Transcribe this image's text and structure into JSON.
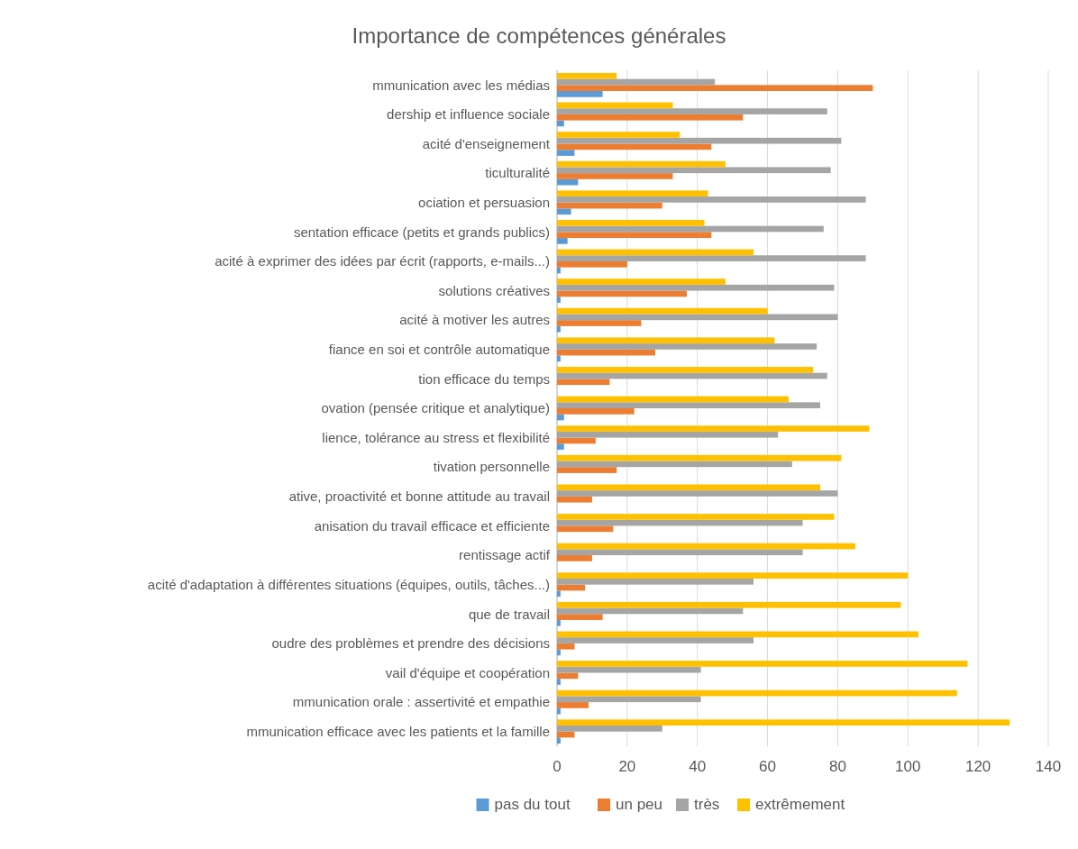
{
  "chart_data": {
    "type": "bar",
    "orientation": "horizontal",
    "title": "Importance de compétences générales",
    "categories": [
      "mmunication avec les médias",
      "dership et influence sociale",
      "acité d'enseignement",
      "ticulturalité",
      "ociation et persuasion",
      "sentation efficace (petits et grands publics)",
      "acité à exprimer des idées par écrit (rapports, e-mails...)",
      "solutions créatives",
      "acité à motiver les autres",
      "fiance en soi et contrôle automatique",
      "tion efficace du temps",
      "ovation (pensée critique et analytique)",
      "lience, tolérance au stress et flexibilité",
      "tivation personnelle",
      "ative, proactivité et bonne attitude au travail",
      "anisation du travail efficace et efficiente",
      "rentissage actif",
      "acité d'adaptation à différentes situations (équipes, outils, tâches...)",
      "que de travail",
      "oudre des problèmes et prendre des décisions",
      "vail d'équipe et coopération",
      "mmunication orale : assertivité et empathie",
      "mmunication efficace avec les patients et la famille"
    ],
    "series": [
      {
        "name": "pas du tout",
        "color": "#5b9bd5",
        "values": [
          13,
          2,
          5,
          6,
          4,
          3,
          1,
          1,
          1,
          1,
          0,
          2,
          2,
          0,
          0,
          0,
          0,
          1,
          1,
          1,
          1,
          1,
          1
        ]
      },
      {
        "name": "un peu",
        "color": "#ed7d31",
        "values": [
          90,
          53,
          44,
          33,
          30,
          44,
          20,
          37,
          24,
          28,
          15,
          22,
          11,
          17,
          10,
          16,
          10,
          8,
          13,
          5,
          6,
          9,
          5
        ]
      },
      {
        "name": "très",
        "color": "#a5a5a5",
        "values": [
          45,
          77,
          81,
          78,
          88,
          76,
          88,
          79,
          80,
          74,
          77,
          75,
          63,
          67,
          80,
          70,
          70,
          56,
          53,
          56,
          41,
          41,
          30
        ]
      },
      {
        "name": "extrêmement",
        "color": "#ffc000",
        "values": [
          17,
          33,
          35,
          48,
          43,
          42,
          56,
          48,
          60,
          62,
          73,
          66,
          89,
          81,
          75,
          79,
          85,
          100,
          98,
          103,
          117,
          114,
          129
        ]
      }
    ],
    "xlim": [
      0,
      140
    ],
    "xticks": [
      0,
      20,
      40,
      60,
      80,
      100,
      120,
      140
    ],
    "grid": "x",
    "legend": "bottom"
  }
}
